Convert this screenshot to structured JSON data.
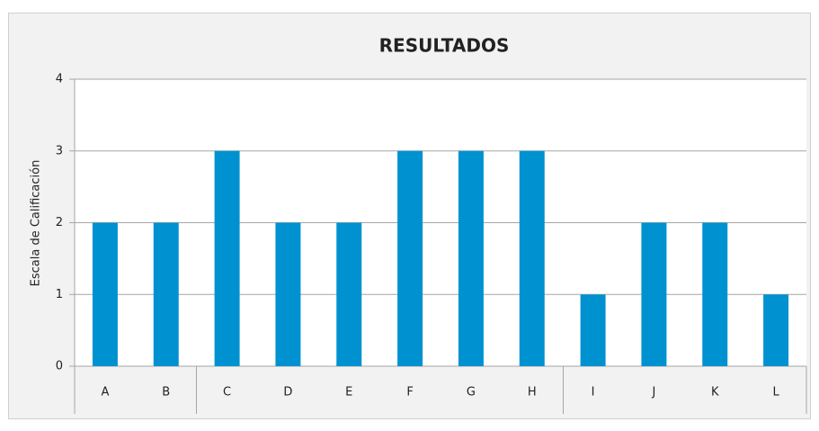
{
  "chart_data": {
    "type": "bar",
    "title": "RESULTADOS",
    "y_label": "Escala de Calificación",
    "categories": [
      "A",
      "B",
      "C",
      "D",
      "E",
      "F",
      "G",
      "H",
      "I",
      "J",
      "K",
      "L"
    ],
    "values": [
      2,
      2,
      3,
      2,
      2,
      3,
      3,
      3,
      1,
      2,
      2,
      1
    ],
    "color": "#0092d0",
    "ylim": [
      0,
      4
    ],
    "yticks": [
      0,
      1,
      2,
      3,
      4
    ],
    "grid": true
  }
}
